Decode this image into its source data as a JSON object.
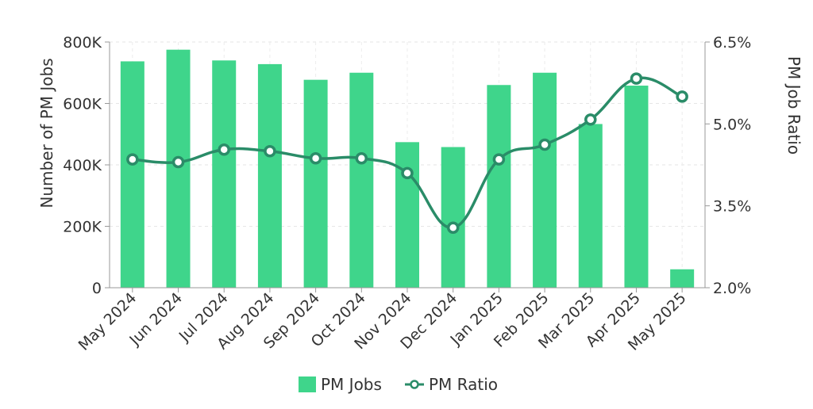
{
  "chart_data": {
    "type": "bar",
    "categories": [
      "May 2024",
      "Jun 2024",
      "Jul 2024",
      "Aug 2024",
      "Sep 2024",
      "Oct 2024",
      "Nov 2024",
      "Dec 2024",
      "Jan 2025",
      "Feb 2025",
      "Mar 2025",
      "Apr 2025",
      "May 2025"
    ],
    "series": [
      {
        "name": "PM Jobs",
        "type": "bar",
        "axis": "left",
        "color": "#3fd58b",
        "values": [
          737000,
          775000,
          740000,
          728000,
          677000,
          700000,
          474000,
          458000,
          660000,
          700000,
          533000,
          658000,
          60000
        ]
      },
      {
        "name": "PM Ratio",
        "type": "line",
        "axis": "right",
        "color": "#2a8c68",
        "values": [
          4.35,
          4.3,
          4.53,
          4.5,
          4.37,
          4.37,
          4.1,
          3.1,
          4.35,
          4.62,
          5.08,
          5.83,
          5.5
        ]
      }
    ],
    "ylabel": "Number of PM Jobs",
    "y2label": "PM Job Ratio",
    "ylim": [
      0,
      800000
    ],
    "y2lim": [
      2.0,
      6.5
    ],
    "yticks": [
      {
        "value": 0,
        "label": "0"
      },
      {
        "value": 200000,
        "label": "200K"
      },
      {
        "value": 400000,
        "label": "400K"
      },
      {
        "value": 600000,
        "label": "600K"
      },
      {
        "value": 800000,
        "label": "800K"
      }
    ],
    "y2ticks": [
      {
        "value": 2.0,
        "label": "2.0%"
      },
      {
        "value": 3.5,
        "label": "3.5%"
      },
      {
        "value": 5.0,
        "label": "5.0%"
      },
      {
        "value": 6.5,
        "label": "6.5%"
      }
    ],
    "grid": true,
    "legend_position": "bottom-center"
  }
}
